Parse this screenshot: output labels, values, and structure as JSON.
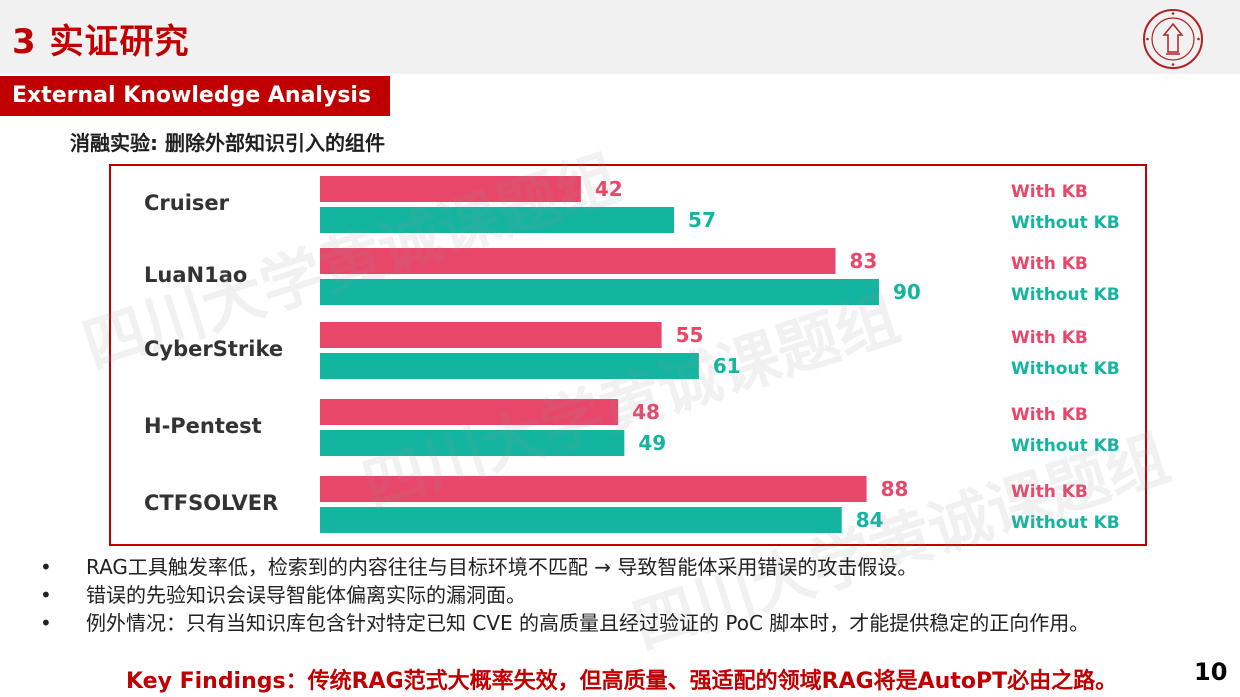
{
  "header": {
    "title": "3 实证研究",
    "section_tag": "External Knowledge Analysis"
  },
  "subtitle": "消融实验: 删除外部知识引入的组件",
  "watermark": "四川大学黄诚课题组",
  "colors": {
    "with_kb": "#e8476a",
    "without_kb": "#14b5a0",
    "accent": "#c00000"
  },
  "chart_data": {
    "type": "bar",
    "orientation": "horizontal",
    "categories": [
      "Cruiser",
      "LuaN1ao",
      "CyberStrike",
      "H-Pentest",
      "CTFSOLVER"
    ],
    "series": [
      {
        "name": "With KB",
        "values": [
          42,
          83,
          55,
          48,
          88
        ]
      },
      {
        "name": "Without KB",
        "values": [
          57,
          90,
          61,
          49,
          84
        ]
      }
    ],
    "xlim": [
      0,
      90
    ],
    "grid": false,
    "data_labels": true,
    "legend_placement": "right"
  },
  "bullets": [
    "RAG工具触发率低，检索到的内容往往与目标环境不匹配 → 导致智能体采用错误的攻击假设。",
    "错误的先验知识会误导智能体偏离实际的漏洞面。",
    "例外情况：只有当知识库包含针对特定已知 CVE 的高质量且经过验证的 PoC 脚本时，才能提供稳定的正向作用。"
  ],
  "key_findings": "Key Findings：传统RAG范式大概率失效，但高质量、强适配的领域RAG将是AutoPT必由之路。",
  "page_number": "10"
}
